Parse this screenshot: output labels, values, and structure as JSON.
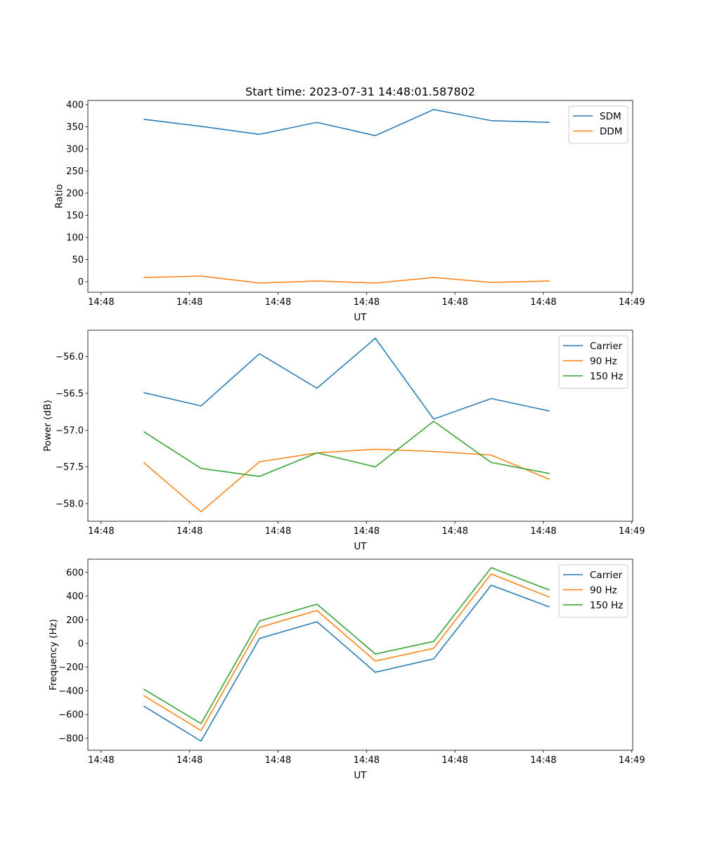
{
  "chart_data": {
    "type": "line",
    "title": "Start time: 2023-07-31 14:48:01.587802",
    "x_unit": "seconds after 14:48:00 UT",
    "x": [
      4.8,
      11.3,
      17.9,
      24.4,
      31.0,
      37.6,
      44.1,
      50.7
    ],
    "xlim": [
      -1.5,
      60.1
    ],
    "xticks": [
      0,
      10,
      20,
      30,
      40,
      50,
      60
    ],
    "xtick_labels": [
      "14:48",
      "14:48",
      "14:48",
      "14:48",
      "14:48",
      "14:48",
      "14:49"
    ],
    "grid": false,
    "subplots": [
      {
        "xlabel": "UT",
        "ylabel": "Ratio",
        "ylim": [
          -23.8,
          409.5
        ],
        "yticks": [
          0,
          50,
          100,
          150,
          200,
          250,
          300,
          350,
          400
        ],
        "ytick_labels": [
          "0",
          "50",
          "100",
          "150",
          "200",
          "250",
          "300",
          "350",
          "400"
        ],
        "legend": "top-right",
        "series": [
          {
            "name": "SDM",
            "color": "#1f77b4",
            "values": [
              367,
              351,
              333,
              360,
              330,
              389,
              364,
              360
            ]
          },
          {
            "name": "DDM",
            "color": "#ff7f0e",
            "values": [
              9.5,
              12.7,
              -3,
              1.6,
              -3,
              9.5,
              -1.6,
              1.6
            ]
          }
        ]
      },
      {
        "xlabel": "UT",
        "ylabel": "Power (dB)",
        "ylim": [
          -58.24,
          -55.64
        ],
        "yticks": [
          -58.0,
          -57.5,
          -57.0,
          -56.5,
          -56.0
        ],
        "ytick_labels": [
          "−58.0",
          "−57.5",
          "−57.0",
          "−56.5",
          "−56.0"
        ],
        "legend": "top-right",
        "series": [
          {
            "name": "Carrier",
            "color": "#1f77b4",
            "values": [
              -56.49,
              -56.67,
              -55.96,
              -56.43,
              -55.75,
              -56.85,
              -56.57,
              -56.74
            ]
          },
          {
            "name": "90 Hz",
            "color": "#ff7f0e",
            "values": [
              -57.44,
              -58.11,
              -57.43,
              -57.31,
              -57.26,
              -57.29,
              -57.34,
              -57.67
            ]
          },
          {
            "name": "150 Hz",
            "color": "#2ca02c",
            "values": [
              -57.02,
              -57.52,
              -57.63,
              -57.31,
              -57.5,
              -56.88,
              -57.44,
              -57.59
            ]
          }
        ]
      },
      {
        "xlabel": "UT",
        "ylabel": "Frequency (Hz)",
        "ylim": [
          -901.5,
          711.7
        ],
        "yticks": [
          -800,
          -600,
          -400,
          -200,
          0,
          200,
          400,
          600
        ],
        "ytick_labels": [
          "−800",
          "−600",
          "−400",
          "−200",
          "0",
          "200",
          "400",
          "600"
        ],
        "legend": "top-right",
        "series": [
          {
            "name": "Carrier",
            "color": "#1f77b4",
            "values": [
              -528,
              -824,
              42,
              184,
              -243,
              -130,
              492,
              308
            ]
          },
          {
            "name": "90 Hz",
            "color": "#ff7f0e",
            "values": [
              -439,
              -735,
              136,
              279,
              -148,
              -41,
              587,
              391
            ]
          },
          {
            "name": "150 Hz",
            "color": "#2ca02c",
            "values": [
              -385,
              -676,
              190,
              332,
              -89,
              18,
              640,
              451
            ]
          }
        ]
      }
    ]
  }
}
